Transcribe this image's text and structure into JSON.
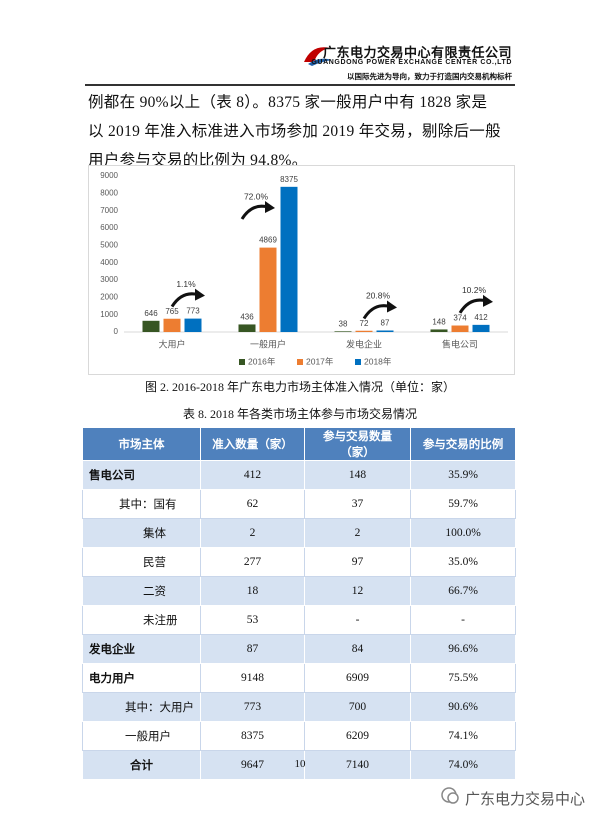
{
  "header": {
    "title": "广东电力交易中心有限责任公司",
    "subtitle": "GUANGDONG POWER EXCHANGE CENTER CO.,LTD",
    "slogan": "以国际先进为导向，致力于打造国内交易机构标杆"
  },
  "paragraph": [
    "例都在 90%以上（表 8）。8375 家一般用户中有 1828 家是",
    "以 2019 年准入标准进入市场参加 2019 年交易，剔除后一般",
    "用户参与交易的比例为 94.8%。"
  ],
  "chart_data": {
    "type": "bar",
    "categories": [
      "大用户",
      "一般用户",
      "发电企业",
      "售电公司"
    ],
    "series": [
      {
        "name": "2016年",
        "color": "#375623",
        "values": [
          646,
          436,
          38,
          148
        ]
      },
      {
        "name": "2017年",
        "color": "#ed7d31",
        "values": [
          765,
          4869,
          72,
          374
        ]
      },
      {
        "name": "2018年",
        "color": "#0070c0",
        "values": [
          773,
          8375,
          87,
          412
        ]
      }
    ],
    "growth_labels": [
      "1.1%",
      "72.0%",
      "20.8%",
      "10.2%"
    ],
    "ylim": [
      0,
      9000
    ],
    "yticks": [
      0,
      1000,
      2000,
      3000,
      4000,
      5000,
      6000,
      7000,
      8000,
      9000
    ],
    "grid": false,
    "legend": "bottom"
  },
  "figure_caption": "图 2. 2016-2018 年广东电力市场主体准入情况（单位：家）",
  "table": {
    "title": "表 8. 2018 年各类市场主体参与市场交易情况",
    "header": [
      "市场主体",
      "准入数量（家）",
      "参与交易数量（家）",
      "参与交易的比例"
    ],
    "rows": [
      [
        "售电公司",
        "412",
        "148",
        "35.9%"
      ],
      [
        "其中：国有",
        "62",
        "37",
        "59.7%"
      ],
      [
        "集体",
        "2",
        "2",
        "100.0%"
      ],
      [
        "民营",
        "277",
        "97",
        "35.0%"
      ],
      [
        "二资",
        "18",
        "12",
        "66.7%"
      ],
      [
        "未注册",
        "53",
        "-",
        "-"
      ],
      [
        "发电企业",
        "87",
        "84",
        "96.6%"
      ],
      [
        "电力用户",
        "9148",
        "6909",
        "75.5%"
      ],
      [
        "其中：大用户",
        "773",
        "700",
        "90.6%"
      ],
      [
        "一般用户",
        "8375",
        "6209",
        "74.1%"
      ],
      [
        "合计",
        "9647",
        "7140",
        "74.0%"
      ]
    ]
  },
  "page_number": "10",
  "watermark": "广东电力交易中心"
}
